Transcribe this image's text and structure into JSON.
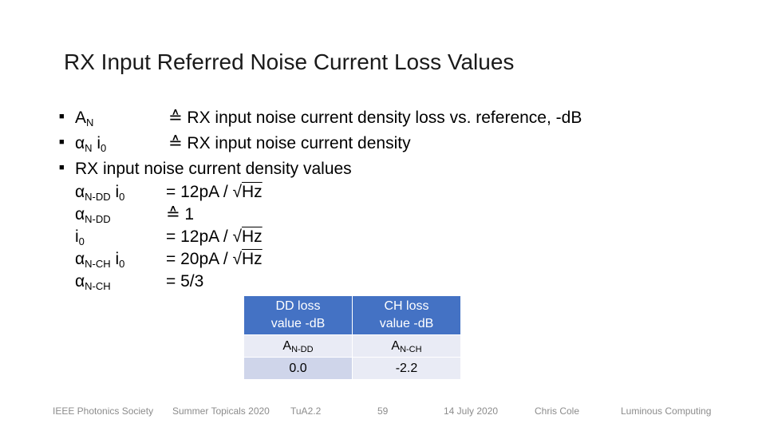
{
  "title": "RX Input Referred Noise Current Loss Values",
  "bullets": [
    {
      "sym": "A",
      "sub": "N",
      "text": "≙ RX input noise current density loss vs. reference, -dB"
    },
    {
      "sym": "α",
      "sub": "N",
      "sym2": " i",
      "sub2": "0",
      "text": "≙ RX input noise current density"
    },
    {
      "text": "RX input noise current density values"
    }
  ],
  "values": [
    {
      "sym": "α",
      "sub": "N-DD",
      "sym2": " i",
      "sub2": "0",
      "rel": "= 12pA / √",
      "unit": "Hz"
    },
    {
      "sym": "α",
      "sub": "N-DD",
      "rel": "≙ 1"
    },
    {
      "sym": "i",
      "sub": "0",
      "rel": "= 12pA / √",
      "unit": "Hz"
    },
    {
      "sym": "α",
      "sub": "N-CH",
      "sym2": " i",
      "sub2": "0",
      "rel": "= 20pA / √",
      "unit": "Hz"
    },
    {
      "sym": "α",
      "sub": "N-CH",
      "rel": "= 5/3"
    }
  ],
  "table": {
    "headers": [
      {
        "line1": "DD loss",
        "line2": "value -dB"
      },
      {
        "line1": "CH loss",
        "line2": "value -dB"
      }
    ],
    "symbols": [
      {
        "sym": "A",
        "sub": "N-DD"
      },
      {
        "sym": "A",
        "sub": "N-CH"
      }
    ],
    "values": [
      "0.0",
      "-2.2"
    ]
  },
  "footer": {
    "society": "IEEE Photonics Society",
    "event": "Summer Topicals 2020",
    "session": "TuA2.2",
    "page": "59",
    "date": "14 July 2020",
    "author": "Chris Cole",
    "company": "Luminous Computing"
  }
}
